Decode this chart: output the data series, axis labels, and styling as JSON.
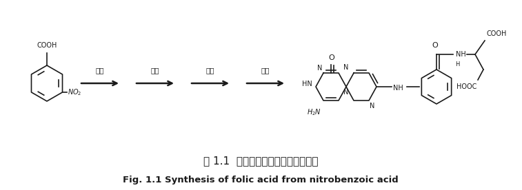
{
  "title_chinese": "图 1.1  以硕基苯甲酸为原料合成叶酸",
  "title_english": "Fig. 1.1 Synthesis of folic acid from nitrobenzoic acid",
  "bg": "#ffffff",
  "fg": "#1a1a1a",
  "step_labels": [
    "氯化",
    "缩合",
    "还原",
    "环合"
  ],
  "figsize": [
    7.57,
    2.76
  ],
  "dpi": 100
}
